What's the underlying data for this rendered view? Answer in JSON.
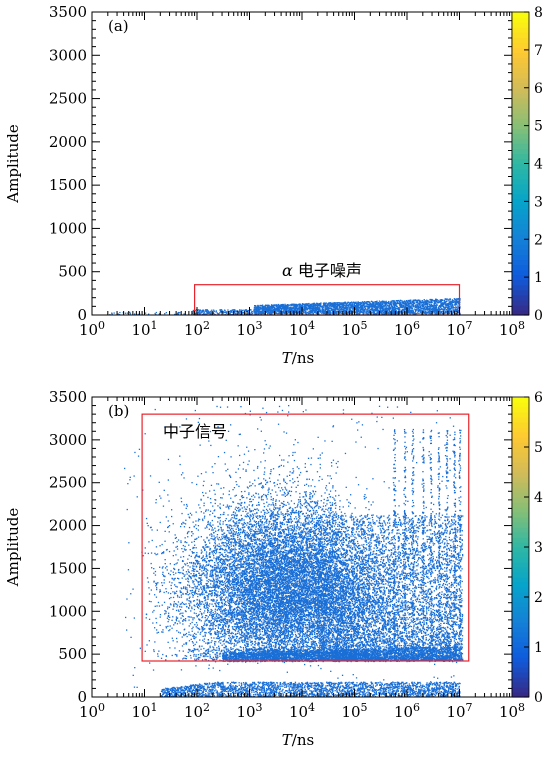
{
  "chart_data": [
    {
      "type": "heatmap",
      "panel_label": "(a)",
      "xlabel": "T/ns",
      "ylabel": "Amplitude",
      "x_scale": "log",
      "xlim": [
        1,
        100000000
      ],
      "ylim": [
        0,
        3500
      ],
      "x_tick_labels": [
        "10^0",
        "10^1",
        "10^2",
        "10^3",
        "10^4",
        "10^5",
        "10^6",
        "10^7",
        "10^8"
      ],
      "y_tick_labels": [
        "0",
        "500",
        "1000",
        "1500",
        "2000",
        "2500",
        "3000",
        "3500"
      ],
      "colorbar_ticks": [
        "0",
        "1",
        "2",
        "3",
        "4",
        "5",
        "6",
        "7",
        "8"
      ],
      "colorbar_range": [
        0,
        8
      ],
      "colormap": [
        "#352a87",
        "#0f5cdd",
        "#1481d6",
        "#06a4ca",
        "#2eb7a4",
        "#87bf77",
        "#d1bb59",
        "#fec832",
        "#f9fb0e"
      ],
      "annotation": "α 电子噪声",
      "region": {
        "x": [
          90,
          10000000
        ],
        "y": [
          0,
          350
        ]
      },
      "point_color": "#1a6fd6",
      "density_bands": [
        {
          "x": [
            1200,
            10000000
          ],
          "y": [
            20,
            200
          ]
        }
      ]
    },
    {
      "type": "heatmap",
      "panel_label": "(b)",
      "xlabel": "T/ns",
      "ylabel": "Amplitude",
      "x_scale": "log",
      "xlim": [
        1,
        100000000
      ],
      "ylim": [
        0,
        3500
      ],
      "x_tick_labels": [
        "10^0",
        "10^1",
        "10^2",
        "10^3",
        "10^4",
        "10^5",
        "10^6",
        "10^7",
        "10^8"
      ],
      "y_tick_labels": [
        "0",
        "500",
        "1000",
        "1500",
        "2000",
        "2500",
        "3000",
        "3500"
      ],
      "colorbar_ticks": [
        "0",
        "1",
        "2",
        "3",
        "4",
        "5",
        "6"
      ],
      "colorbar_range": [
        0,
        6
      ],
      "colormap": [
        "#352a87",
        "#0f5cdd",
        "#1481d6",
        "#06a4ca",
        "#2eb7a4",
        "#87bf77",
        "#d1bb59",
        "#fec832",
        "#f9fb0e"
      ],
      "annotation": "中子信号",
      "region": {
        "x": [
          9,
          15000000
        ],
        "y": [
          420,
          3300
        ]
      },
      "point_color": "#1a6fd6",
      "density_bands": [
        {
          "x": [
            300,
            10000000
          ],
          "y": [
            420,
            600
          ]
        },
        {
          "x": [
            30,
            10000000
          ],
          "y": [
            0,
            180
          ]
        }
      ]
    }
  ]
}
